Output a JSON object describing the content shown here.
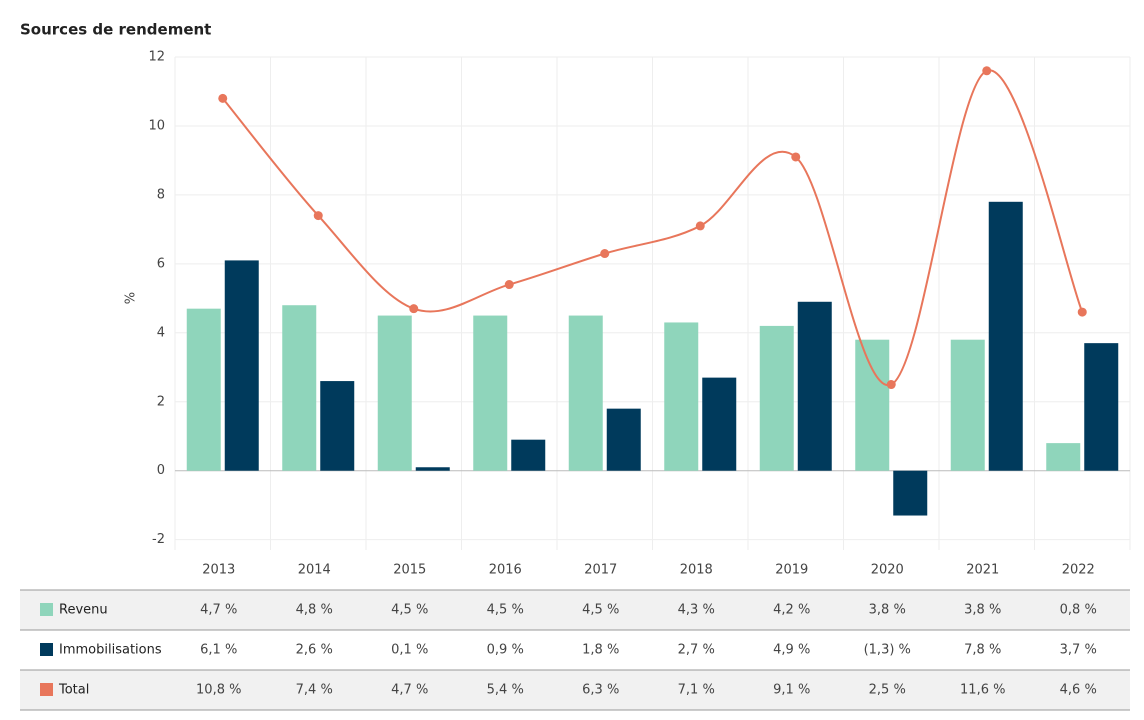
{
  "chart_data": {
    "type": "bar",
    "title": "Sources de rendement",
    "y_label": "%",
    "categories": [
      "2013",
      "2014",
      "2015",
      "2016",
      "2017",
      "2018",
      "2019",
      "2020",
      "2021",
      "2022"
    ],
    "series": [
      {
        "name": "Revenu",
        "type": "bar",
        "color": "#8fd5bb",
        "values": [
          4.7,
          4.8,
          4.5,
          4.5,
          4.5,
          4.3,
          4.2,
          3.8,
          3.8,
          0.8
        ],
        "value_labels": [
          "4,7 %",
          "4,8 %",
          "4,5 %",
          "4,5 %",
          "4,5 %",
          "4,3 %",
          "4,2 %",
          "3,8 %",
          "3,8 %",
          "0,8 %"
        ]
      },
      {
        "name": "Immobilisations",
        "type": "bar",
        "color": "#003a5c",
        "values": [
          6.1,
          2.6,
          0.1,
          0.9,
          1.8,
          2.7,
          4.9,
          -1.3,
          7.8,
          3.7
        ],
        "value_labels": [
          "6,1 %",
          "2,6 %",
          "0,1 %",
          "0,9 %",
          "1,8 %",
          "2,7 %",
          "4,9 %",
          "(1,3) %",
          "7,8 %",
          "3,7 %"
        ]
      },
      {
        "name": "Total",
        "type": "line",
        "color": "#e8765b",
        "values": [
          10.8,
          7.4,
          4.7,
          5.4,
          6.3,
          7.1,
          9.1,
          2.5,
          11.6,
          4.6
        ],
        "value_labels": [
          "10,8 %",
          "7,4 %",
          "4,7 %",
          "5,4 %",
          "6,3 %",
          "7,1 %",
          "9,1 %",
          "2,5 %",
          "11,6 %",
          "4,6 %"
        ]
      }
    ],
    "ylim": [
      -2.3,
      12
    ],
    "yticks": [
      -2,
      0,
      2,
      4,
      6,
      8,
      10,
      12
    ],
    "grid": true
  }
}
